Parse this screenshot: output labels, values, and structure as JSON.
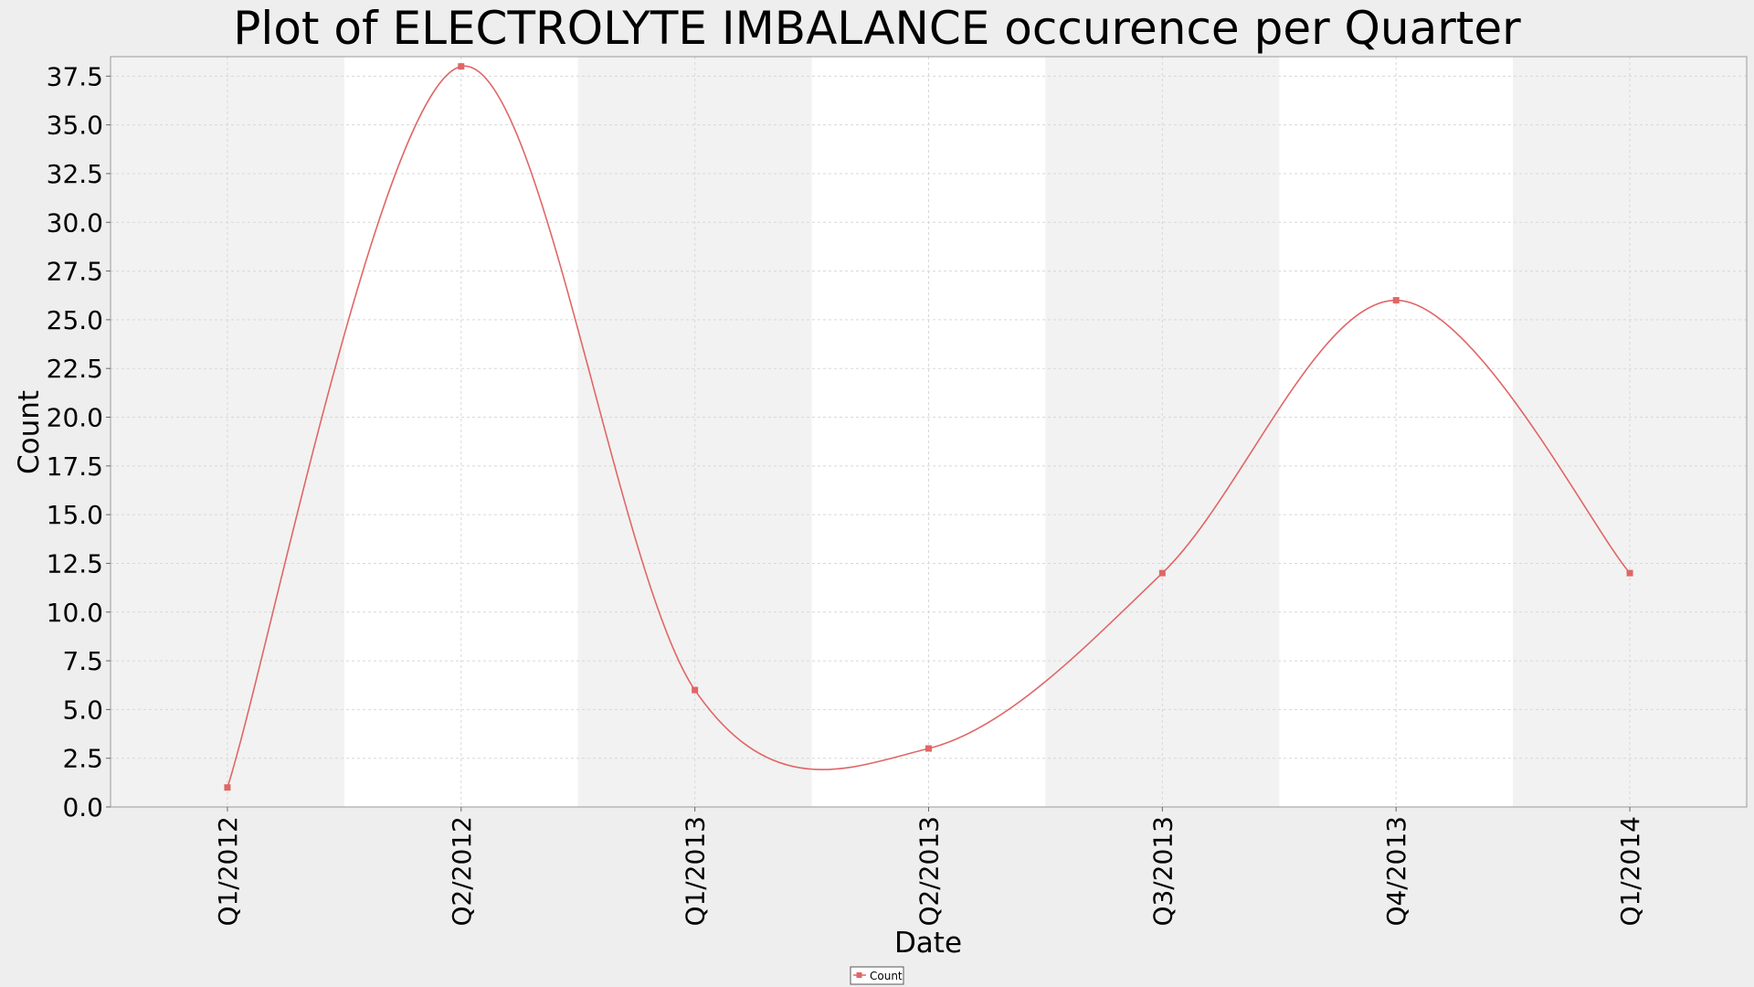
{
  "chart_data": {
    "type": "line",
    "title": "Plot of ELECTROLYTE IMBALANCE occurence per Quarter",
    "xlabel": "Date",
    "ylabel": "Count",
    "categories": [
      "Q1/2012",
      "Q2/2012",
      "Q1/2013",
      "Q2/2013",
      "Q3/2013",
      "Q4/2013",
      "Q1/2014"
    ],
    "series": [
      {
        "name": "Count",
        "values": [
          1,
          38,
          6,
          3,
          12,
          26,
          12
        ],
        "color": "#e06666"
      }
    ],
    "ylim": [
      0,
      38.5
    ],
    "yticks": [
      "0.0",
      "2.5",
      "5.0",
      "7.5",
      "10.0",
      "12.5",
      "15.0",
      "17.5",
      "20.0",
      "22.5",
      "25.0",
      "27.5",
      "30.0",
      "32.5",
      "35.0",
      "37.5"
    ],
    "grid": true,
    "smooth": true,
    "legend_position": "bottom-center",
    "colors": {
      "plot_band": "#f2f2f2",
      "plot_band_alt": "#ffffff",
      "grid": "#d8d8d8"
    }
  }
}
